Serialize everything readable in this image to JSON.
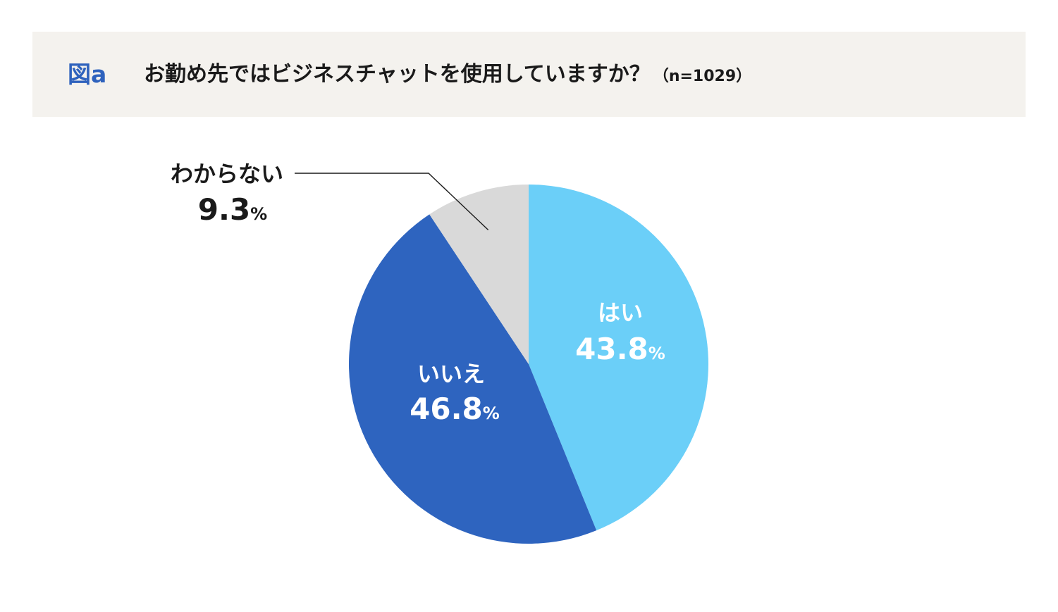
{
  "header": {
    "figure_label": "図a",
    "question": "お勤め先ではビジネスチャットを使用していますか？",
    "sample_size": "（n=1029）"
  },
  "chart_data": {
    "type": "pie",
    "start_angle": "top",
    "direction": "clockwise",
    "slices": [
      {
        "label": "はい",
        "value": 43.8,
        "value_text": "43.8",
        "unit": "%",
        "color": "#6bcff8",
        "text_color": "#ffffff"
      },
      {
        "label": "いいえ",
        "value": 46.8,
        "value_text": "46.8",
        "unit": "%",
        "color": "#2e64bf",
        "text_color": "#ffffff"
      },
      {
        "label": "わからない",
        "value": 9.3,
        "value_text": "9.3",
        "unit": "%",
        "color": "#d9d9d9",
        "text_color": "#1a1a1a"
      }
    ]
  }
}
